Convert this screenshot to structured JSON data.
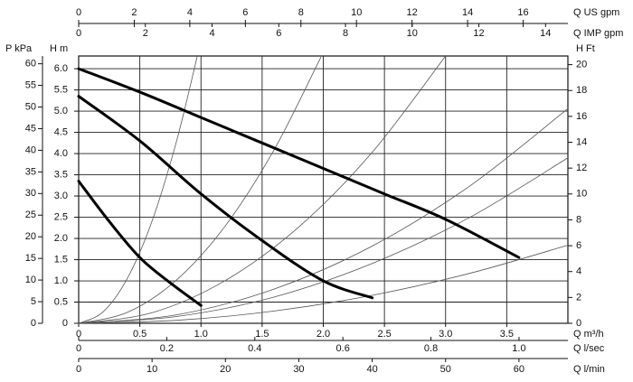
{
  "chart_data": {
    "type": "line",
    "xlabel": "Q m³/h",
    "ylabel": "H m",
    "xlim": [
      0,
      4
    ],
    "xticks": [
      0,
      0.5,
      {
        "value": 1,
        "label": "1.0"
      },
      1.5,
      {
        "value": 2,
        "label": "2.0"
      },
      2.5,
      {
        "value": 3,
        "label": "3.0"
      },
      3.5
    ],
    "ylim": [
      0,
      6.3
    ],
    "yticks": [
      0,
      0.5,
      {
        "value": 1,
        "label": "1.0"
      },
      1.5,
      {
        "value": 2,
        "label": "2.0"
      },
      2.5,
      {
        "value": 3,
        "label": "3.0"
      },
      3.5,
      {
        "value": 4,
        "label": "4.0"
      },
      4.5,
      {
        "value": 5,
        "label": "5.0"
      },
      5.5,
      {
        "value": 6,
        "label": "6.0"
      }
    ],
    "grid": true,
    "series": [
      {
        "color": "#000000",
        "x": [
          0,
          0.5,
          1,
          1.5,
          2,
          2.5,
          3,
          3.6
        ],
        "values": [
          6.0,
          5.45,
          4.85,
          4.25,
          3.65,
          3.05,
          2.45,
          1.55
        ]
      },
      {
        "color": "#000000",
        "x": [
          0,
          0.5,
          1,
          1.5,
          2,
          2.4
        ],
        "values": [
          5.35,
          4.3,
          3.05,
          1.95,
          1.0,
          0.6
        ]
      },
      {
        "color": "#000000",
        "x": [
          0,
          0.25,
          0.5,
          0.75,
          1.0
        ],
        "values": [
          3.35,
          2.4,
          1.55,
          0.95,
          0.42
        ]
      }
    ],
    "system_curves": [
      {
        "color": "#555555",
        "x": [
          0,
          0.2,
          0.4,
          0.6,
          0.8,
          0.97
        ],
        "values": [
          0,
          0.27,
          1.07,
          2.41,
          4.29,
          6.3
        ]
      },
      {
        "color": "#555555",
        "x": [
          0,
          0.4,
          0.8,
          1.2,
          1.6,
          1.98
        ],
        "values": [
          0,
          0.26,
          1.02,
          2.3,
          4.1,
          6.27
        ]
      },
      {
        "color": "#555555",
        "x": [
          0,
          0.6,
          1.2,
          1.8,
          2.4,
          3.0
        ],
        "values": [
          0,
          0.25,
          1.01,
          2.27,
          4.03,
          6.3
        ]
      },
      {
        "color": "#555555",
        "x": [
          0,
          0.8,
          1.6,
          2.4,
          3.2,
          4.0
        ],
        "values": [
          0,
          0.2,
          0.81,
          1.82,
          3.24,
          5.06
        ]
      },
      {
        "color": "#555555",
        "x": [
          0,
          0.8,
          1.6,
          2.4,
          3.2,
          4.0
        ],
        "values": [
          0,
          0.16,
          0.62,
          1.41,
          2.5,
          3.9
        ]
      },
      {
        "color": "#555555",
        "x": [
          0,
          0.8,
          1.6,
          2.4,
          3.2,
          4.0
        ],
        "values": [
          0,
          0.07,
          0.29,
          0.66,
          1.18,
          1.84
        ]
      }
    ],
    "top_axes": [
      {
        "title": "Q US gpm",
        "lim": [
          0,
          17.61
        ],
        "ticks": [
          0,
          2,
          4,
          6,
          8,
          10,
          12,
          14,
          16
        ]
      },
      {
        "title": "Q IMP gpm",
        "lim": [
          0,
          14.67
        ],
        "ticks": [
          0,
          2,
          4,
          6,
          8,
          10,
          12,
          14
        ]
      }
    ],
    "bottom_axes": [
      {
        "title": "Q l/sec",
        "lim": [
          0,
          1.111
        ],
        "ticks": [
          0,
          0.2,
          0.4,
          0.6,
          0.8,
          {
            "value": 1,
            "label": "1.0"
          }
        ]
      },
      {
        "title": "Q l/min",
        "lim": [
          0,
          66.67
        ],
        "ticks": [
          0,
          10,
          20,
          30,
          40,
          50,
          60
        ]
      }
    ],
    "left_axis": {
      "title": "P kPa",
      "lim": [
        0,
        61.8
      ],
      "ticks": [
        0,
        5,
        10,
        15,
        20,
        25,
        30,
        35,
        40,
        45,
        50,
        55,
        60
      ]
    },
    "right_axis": {
      "title": "H Ft",
      "lim": [
        0,
        20.67
      ],
      "ticks": [
        0,
        2,
        4,
        6,
        8,
        10,
        12,
        14,
        16,
        18,
        20
      ]
    }
  }
}
